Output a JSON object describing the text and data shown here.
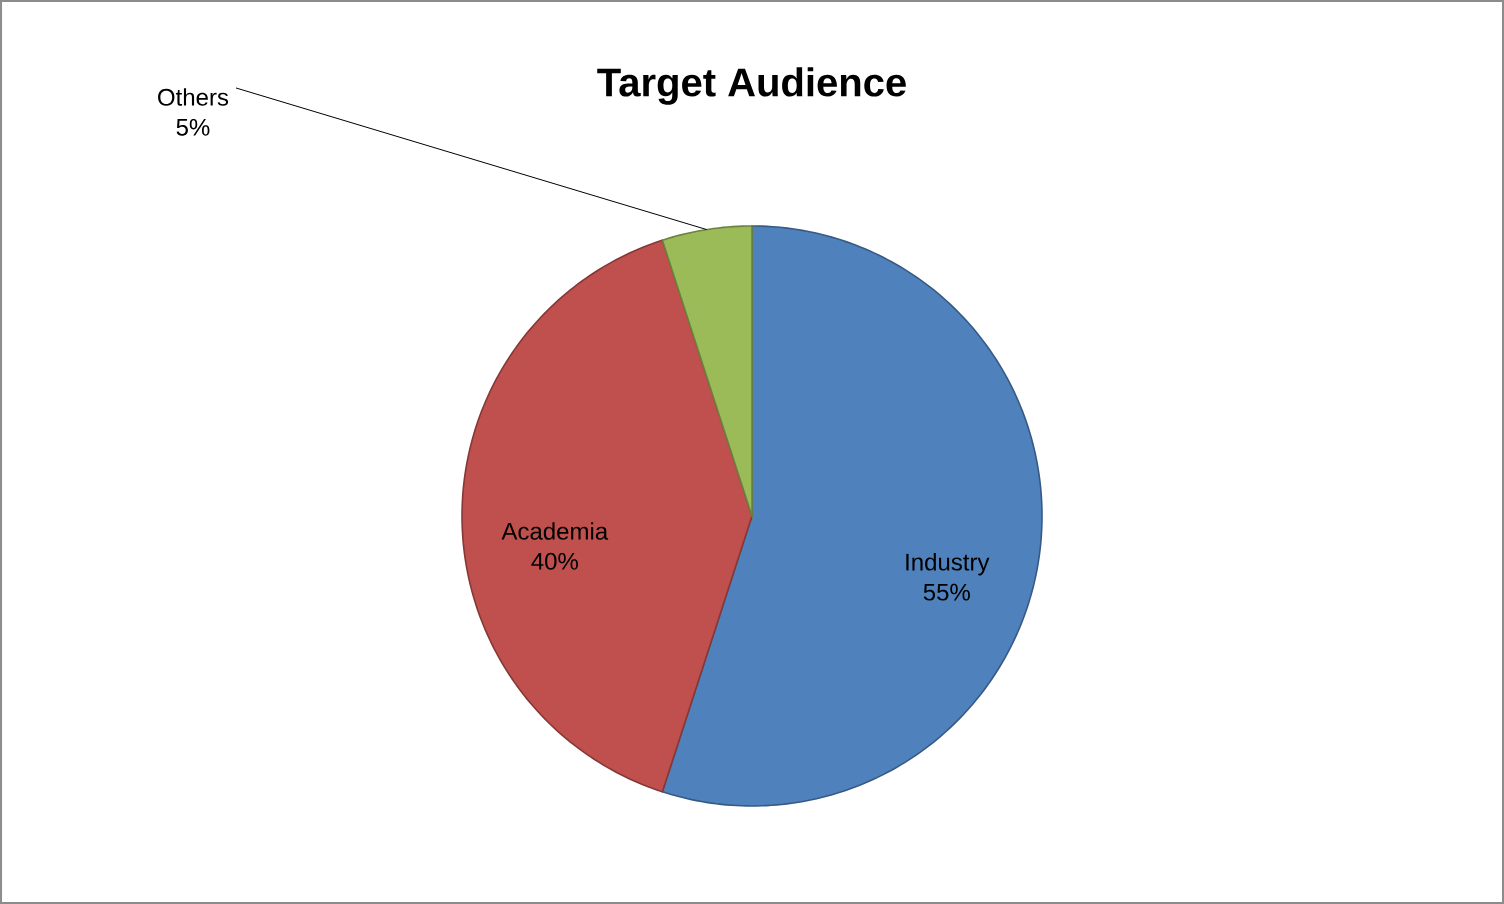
{
  "chart_data": {
    "type": "pie",
    "title": "Target Audience",
    "categories": [
      "Industry",
      "Academia",
      "Others"
    ],
    "values": [
      55,
      40,
      5
    ],
    "value_labels": [
      "55%",
      "40%",
      "5%"
    ],
    "colors": [
      "#4f81bd",
      "#c0504d",
      "#9bbb59"
    ]
  }
}
